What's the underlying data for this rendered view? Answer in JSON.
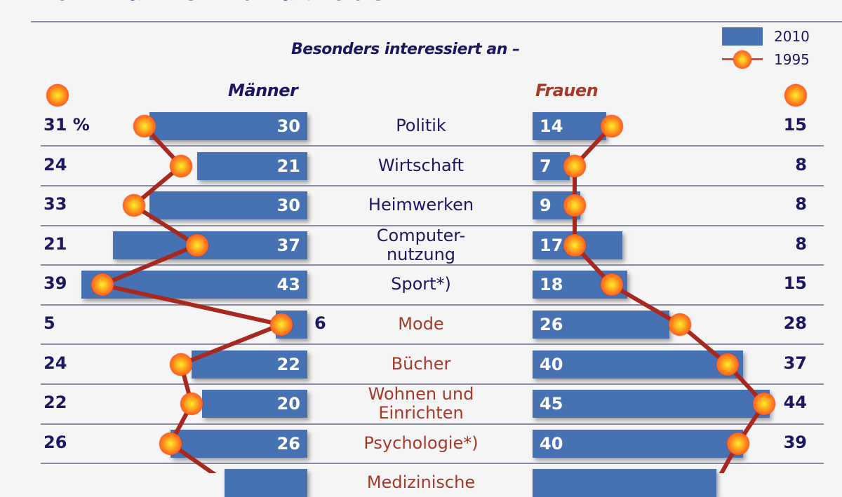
{
  "header": {
    "title": "von Männern und Frauen",
    "subtitle": "Besonders interessiert an –"
  },
  "legend": {
    "bar_label": "2010",
    "line_label": "1995"
  },
  "columns": {
    "men": "Männer",
    "women": "Frauen"
  },
  "colors": {
    "bar": "#4671b2",
    "line": "#a6281e",
    "men_text": "#1d1660",
    "women_text": "#a63a2a"
  },
  "rows": [
    {
      "category": "Politik",
      "men_1995": "31 %",
      "men_2010": "30",
      "women_2010": "14",
      "women_1995": "15"
    },
    {
      "category": "Wirtschaft",
      "men_1995": "24",
      "men_2010": "21",
      "women_2010": "7",
      "women_1995": "8"
    },
    {
      "category": "Heimwerken",
      "men_1995": "33",
      "men_2010": "30",
      "women_2010": "9",
      "women_1995": "8"
    },
    {
      "category": "Computer-\nnutzung",
      "men_1995": "21",
      "men_2010": "37",
      "women_2010": "17",
      "women_1995": "8"
    },
    {
      "category": "Sport*)",
      "men_1995": "39",
      "men_2010": "43",
      "women_2010": "18",
      "women_1995": "15"
    },
    {
      "category": "Mode",
      "men_1995": "5",
      "men_2010": "6",
      "women_2010": "26",
      "women_1995": "28"
    },
    {
      "category": "Bücher",
      "men_1995": "24",
      "men_2010": "22",
      "women_2010": "40",
      "women_1995": "37"
    },
    {
      "category": "Wohnen und\nEinrichten",
      "men_1995": "22",
      "men_2010": "20",
      "women_2010": "45",
      "women_1995": "44"
    },
    {
      "category": "Psychologie*)",
      "men_1995": "26",
      "men_2010": "26",
      "women_2010": "40",
      "women_1995": "39"
    },
    {
      "category": "Medizinische",
      "men_1995": "",
      "men_2010": "",
      "women_2010": "",
      "women_1995": ""
    }
  ],
  "chart_data": {
    "type": "bar",
    "title": "Besonders interessiert an –",
    "categories": [
      "Politik",
      "Wirtschaft",
      "Heimwerken",
      "Computernutzung",
      "Sport*)",
      "Mode",
      "Bücher",
      "Wohnen und Einrichten",
      "Psychologie*)"
    ],
    "series": [
      {
        "name": "Männer 2010",
        "type": "bar",
        "values": [
          30,
          21,
          30,
          37,
          43,
          6,
          22,
          20,
          26
        ]
      },
      {
        "name": "Männer 1995",
        "type": "line",
        "values": [
          31,
          24,
          33,
          21,
          39,
          5,
          24,
          22,
          26
        ]
      },
      {
        "name": "Frauen 2010",
        "type": "bar",
        "values": [
          14,
          7,
          9,
          17,
          18,
          26,
          40,
          45,
          40
        ]
      },
      {
        "name": "Frauen 1995",
        "type": "line",
        "values": [
          15,
          8,
          8,
          8,
          15,
          28,
          37,
          44,
          39
        ]
      }
    ],
    "unit": "%",
    "legend": [
      "2010",
      "1995"
    ],
    "legend_position": "top-right",
    "layout": "butterfly (men left, women right)",
    "truncated_row": "Medizinische"
  }
}
